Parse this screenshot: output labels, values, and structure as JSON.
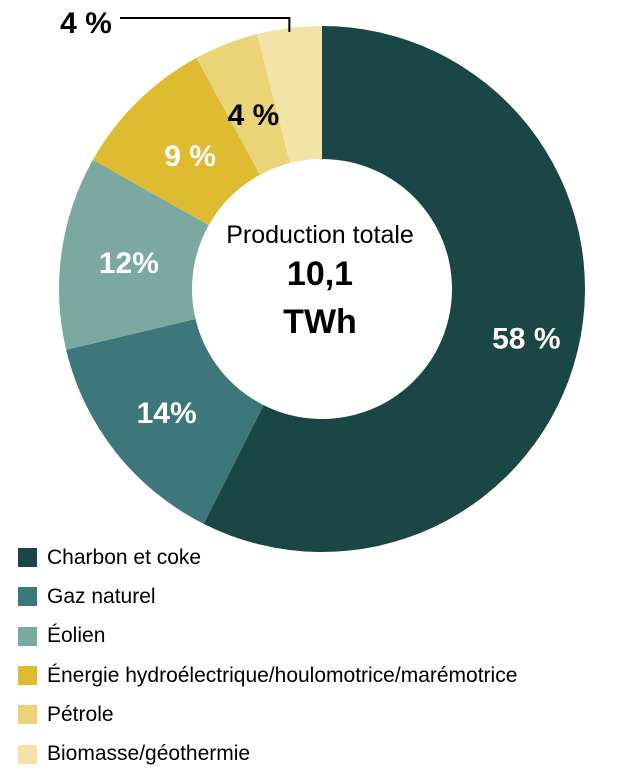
{
  "chart_data": {
    "type": "pie",
    "style": "donut",
    "categories": [
      "Charbon et coke",
      "Gaz naturel",
      "Éolien",
      "Énergie hydroélectrique/houlomotrice/marémotrice",
      "Pétrole",
      "Biomasse/géothermie"
    ],
    "values": [
      58,
      14,
      12,
      9,
      4,
      4
    ],
    "value_labels": [
      "58 %",
      "14%",
      "12%",
      "9 %",
      "4 %",
      "4 %"
    ],
    "colors": [
      "#1b4646",
      "#3d767b",
      "#7ba89f",
      "#dfbb31",
      "#ebd378",
      "#f2e4a6"
    ],
    "legend_position": "bottom-left",
    "center": {
      "caption": "Production totale",
      "value_line1": "10,1",
      "value_line2": "TWh"
    }
  }
}
